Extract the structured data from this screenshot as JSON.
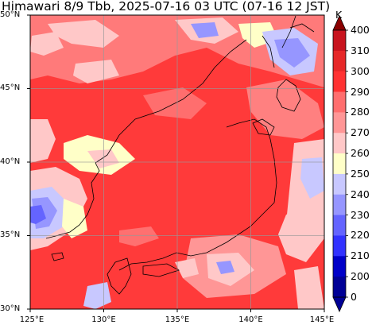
{
  "title": "Himawari 8/9 Tbb, 2025-07-16 03 UTC (07-16 12 JST)",
  "map": {
    "lat_labels": [
      "50°N",
      "45°N",
      "40°N",
      "35°N",
      "30°N"
    ],
    "lon_labels": [
      "125°E",
      "130°E",
      "135°E",
      "140°E",
      "145°E"
    ],
    "extent": {
      "lon_min": 125,
      "lon_max": 145,
      "lat_min": 30,
      "lat_max": 50
    },
    "gridlines": true
  },
  "colorbar": {
    "unit": "K",
    "labels": [
      "400",
      "310",
      "300",
      "290",
      "280",
      "270",
      "260",
      "250",
      "240",
      "230",
      "220",
      "210",
      "200",
      "0"
    ],
    "colors": [
      "#8b0000",
      "#c8141e",
      "#e62828",
      "#ff3232",
      "#ff6e6e",
      "#ff9696",
      "#ffc8c8",
      "#ffffc8",
      "#c8c8ff",
      "#9696ff",
      "#6464ff",
      "#3232ff",
      "#0000c8",
      "#000096"
    ]
  }
}
